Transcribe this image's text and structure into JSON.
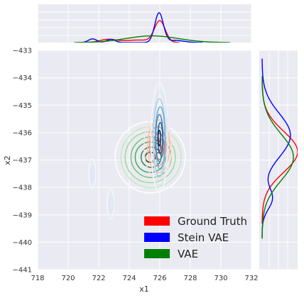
{
  "chart_data": {
    "type": "kde-joint",
    "xlabel": "x1",
    "ylabel": "x2",
    "xlim": [
      718,
      732
    ],
    "ylim": [
      -441,
      -433
    ],
    "xticks": [
      718,
      720,
      722,
      724,
      726,
      728,
      730,
      732
    ],
    "yticks": [
      -441,
      -440,
      -439,
      -438,
      -437,
      -436,
      -435,
      -434,
      -433
    ],
    "grid": true,
    "legend_position": "lower-right",
    "series": [
      {
        "name": "Ground Truth",
        "color": "#ff0000",
        "contour_palette": "Reds",
        "contour_centers": [
          {
            "x": 725.9,
            "y": -436.5
          }
        ],
        "x_marginal": [
          {
            "mean": 722.6,
            "sd": 0.55,
            "weight": 0.15
          },
          {
            "mean": 724.6,
            "sd": 0.9,
            "weight": 0.2
          },
          {
            "mean": 726.0,
            "sd": 0.35,
            "weight": 0.65
          }
        ],
        "y_marginal": [
          {
            "mean": -436.7,
            "sd": 0.75,
            "weight": 1.0
          }
        ]
      },
      {
        "name": "Stein VAE",
        "color": "#0000ff",
        "contour_palette": "Blues",
        "contour_centers": [
          {
            "x": 726.0,
            "y": -436.2
          },
          {
            "x": 721.6,
            "y": -437.5
          },
          {
            "x": 722.8,
            "y": -438.6
          }
        ],
        "x_marginal": [
          {
            "mean": 721.6,
            "sd": 0.28,
            "weight": 0.09
          },
          {
            "mean": 722.8,
            "sd": 0.28,
            "weight": 0.08
          },
          {
            "mean": 725.95,
            "sd": 0.28,
            "weight": 0.72
          },
          {
            "mean": 727.0,
            "sd": 0.6,
            "weight": 0.11
          }
        ],
        "y_marginal": [
          {
            "mean": -436.1,
            "sd": 0.8,
            "weight": 0.85
          },
          {
            "mean": -438.4,
            "sd": 0.4,
            "weight": 0.15
          }
        ]
      },
      {
        "name": "VAE",
        "color": "#008000",
        "contour_palette": "Greens",
        "contour_centers": [
          {
            "x": 725.4,
            "y": -436.9
          }
        ],
        "x_marginal": [
          {
            "mean": 725.5,
            "sd": 1.7,
            "weight": 1.0
          }
        ],
        "y_marginal": [
          {
            "mean": -436.9,
            "sd": 0.85,
            "weight": 1.0
          }
        ]
      }
    ]
  }
}
